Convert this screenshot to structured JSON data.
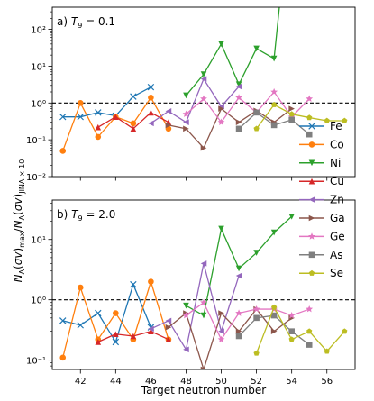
{
  "figure": {
    "ylabel": "N_A(σv)_max/N_A(σv)_JINA×10",
    "xlabel": "Target neutron number",
    "reference_line": 1.0
  },
  "legend": {
    "placement": "right",
    "entries": [
      {
        "name": "Fe",
        "color": "#1f77b4",
        "marker": "x"
      },
      {
        "name": "Co",
        "color": "#ff7f0e",
        "marker": "o"
      },
      {
        "name": "Ni",
        "color": "#2ca02c",
        "marker": "v"
      },
      {
        "name": "Cu",
        "color": "#d62728",
        "marker": "^"
      },
      {
        "name": "Zn",
        "color": "#9467bd",
        "marker": "<"
      },
      {
        "name": "Ga",
        "color": "#8c564b",
        "marker": ">"
      },
      {
        "name": "Ge",
        "color": "#e377c2",
        "marker": "*"
      },
      {
        "name": "As",
        "color": "#7f7f7f",
        "marker": "s"
      },
      {
        "name": "Se",
        "color": "#bcbd22",
        "marker": "p"
      }
    ]
  },
  "chart_data": [
    {
      "type": "line",
      "title": "a) T9 = 0.1",
      "title_prefix": "a) ",
      "title_var": "T",
      "title_sub": "9",
      "title_suffix": " = 0.1",
      "yscale": "log",
      "xlim": [
        40.4,
        57.6
      ],
      "ylim": [
        0.01,
        400
      ],
      "ytick_labels": [
        "10⁻²",
        "10⁻¹",
        "10⁰",
        "10¹",
        "10²"
      ],
      "xticks": [
        42,
        44,
        46,
        48,
        50,
        52,
        54,
        56
      ],
      "series": [
        {
          "name": "Fe",
          "x": [
            41,
            42,
            43,
            44,
            45,
            46
          ],
          "values": [
            0.42,
            0.42,
            0.55,
            0.45,
            1.5,
            2.7
          ]
        },
        {
          "name": "Co",
          "x": [
            41,
            42,
            43,
            44,
            45,
            46,
            47
          ],
          "values": [
            0.05,
            1.0,
            0.12,
            0.42,
            0.28,
            1.4,
            0.2
          ]
        },
        {
          "name": "Ni",
          "x": [
            48,
            49,
            50,
            51,
            52,
            53,
            53.3
          ],
          "values": [
            1.6,
            6.0,
            40,
            3.2,
            30,
            16,
            400
          ]
        },
        {
          "name": "Cu",
          "x": [
            43,
            44,
            45,
            46,
            47
          ],
          "values": [
            0.22,
            0.42,
            0.2,
            0.55,
            0.3
          ]
        },
        {
          "name": "Zn",
          "x": [
            46,
            47,
            48,
            49,
            50,
            51
          ],
          "values": [
            0.28,
            0.6,
            0.3,
            4.5,
            0.8,
            2.8
          ]
        },
        {
          "name": "Ga",
          "x": [
            47,
            48,
            49,
            50,
            51,
            52,
            53,
            54
          ],
          "values": [
            0.25,
            0.2,
            0.06,
            0.7,
            0.3,
            0.62,
            0.3,
            0.7
          ]
        },
        {
          "name": "Ge",
          "x": [
            48,
            49,
            50,
            51,
            52,
            53,
            54,
            55
          ],
          "values": [
            0.5,
            1.3,
            0.3,
            1.4,
            0.55,
            2.0,
            0.42,
            1.3
          ]
        },
        {
          "name": "As",
          "x": [
            51,
            52,
            53,
            54,
            55
          ],
          "values": [
            0.2,
            0.55,
            0.25,
            0.35,
            0.14
          ]
        },
        {
          "name": "Se",
          "x": [
            52,
            53,
            54,
            55,
            56,
            57
          ],
          "values": [
            0.2,
            0.9,
            0.5,
            0.4,
            0.33,
            0.33
          ]
        }
      ]
    },
    {
      "type": "line",
      "title": "b) T9 = 2.0",
      "title_prefix": "b) ",
      "title_var": "T",
      "title_sub": "9",
      "title_suffix": " = 2.0",
      "yscale": "log",
      "xlim": [
        40.4,
        57.6
      ],
      "ylim": [
        0.07,
        45
      ],
      "ytick_labels": [
        "10⁻¹",
        "10⁰",
        "10¹"
      ],
      "xticks": [
        42,
        44,
        46,
        48,
        50,
        52,
        54,
        56
      ],
      "xtick_labels": [
        "42",
        "44",
        "46",
        "48",
        "50",
        "52",
        "54",
        "56"
      ],
      "series": [
        {
          "name": "Fe",
          "x": [
            41,
            42,
            43,
            44,
            45,
            46
          ],
          "values": [
            0.45,
            0.38,
            0.6,
            0.2,
            1.8,
            0.35
          ]
        },
        {
          "name": "Co",
          "x": [
            41,
            42,
            43,
            44,
            45,
            46,
            47
          ],
          "values": [
            0.11,
            1.6,
            0.22,
            0.6,
            0.22,
            2.0,
            0.22
          ]
        },
        {
          "name": "Ni",
          "x": [
            48,
            49,
            50,
            51,
            52,
            53,
            54
          ],
          "values": [
            0.8,
            0.55,
            15,
            3.3,
            6.0,
            13,
            24
          ]
        },
        {
          "name": "Cu",
          "x": [
            43,
            44,
            45,
            46,
            47
          ],
          "values": [
            0.2,
            0.27,
            0.25,
            0.3,
            0.22
          ]
        },
        {
          "name": "Zn",
          "x": [
            46,
            47,
            48,
            49,
            50,
            51
          ],
          "values": [
            0.33,
            0.45,
            0.15,
            4.0,
            0.3,
            2.5
          ]
        },
        {
          "name": "Ga",
          "x": [
            47,
            48,
            49,
            50,
            51,
            52,
            53,
            54
          ],
          "values": [
            0.35,
            0.6,
            0.07,
            0.6,
            0.3,
            0.7,
            0.3,
            0.5
          ]
        },
        {
          "name": "Ge",
          "x": [
            48,
            49,
            50,
            51,
            52,
            53,
            54,
            55
          ],
          "values": [
            0.55,
            0.9,
            0.22,
            0.6,
            0.7,
            0.7,
            0.55,
            0.7
          ]
        },
        {
          "name": "As",
          "x": [
            51,
            52,
            53,
            54,
            55
          ],
          "values": [
            0.25,
            0.5,
            0.55,
            0.3,
            0.18
          ]
        },
        {
          "name": "Se",
          "x": [
            52,
            53,
            54,
            55,
            56,
            57
          ],
          "values": [
            0.13,
            0.75,
            0.22,
            0.3,
            0.14,
            0.3
          ]
        }
      ]
    }
  ]
}
